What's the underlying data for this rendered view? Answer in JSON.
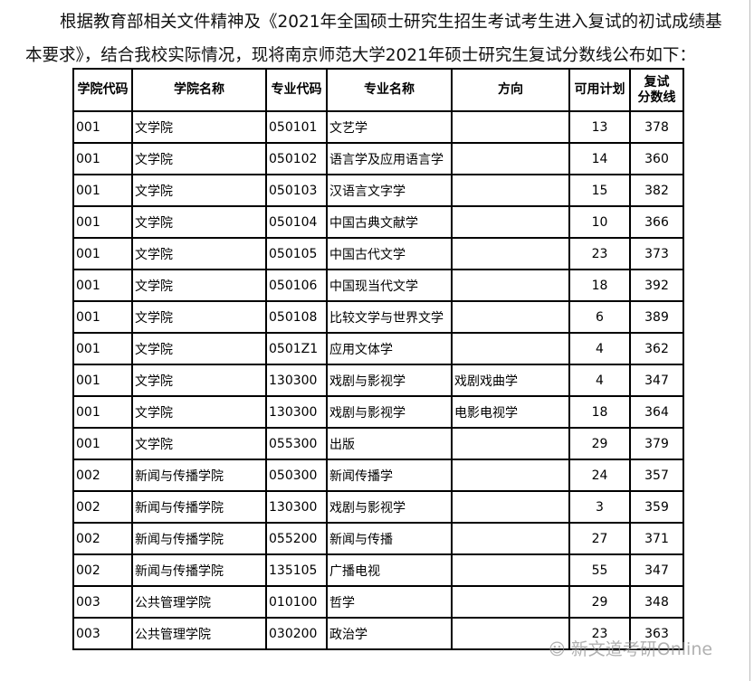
{
  "intro": {
    "line1": "根据教育部相关文件精神及《2021年全国硕士研究生招生考试考生进入复试的初试成绩基",
    "line2": "本要求》，结合我校实际情况，现将南京师范大学2021年硕士研究生复试分数线公布如下："
  },
  "table": {
    "headers": [
      "学院代码",
      "学院名称",
      "专业代码",
      "专业名称",
      "方向",
      "可用计划",
      "复试分数线"
    ],
    "rows": [
      [
        "001",
        "文学院",
        "050101",
        "文艺学",
        "",
        "13",
        "378"
      ],
      [
        "001",
        "文学院",
        "050102",
        "语言学及应用语言学",
        "",
        "14",
        "360"
      ],
      [
        "001",
        "文学院",
        "050103",
        "汉语言文字学",
        "",
        "15",
        "382"
      ],
      [
        "001",
        "文学院",
        "050104",
        "中国古典文献学",
        "",
        "10",
        "366"
      ],
      [
        "001",
        "文学院",
        "050105",
        "中国古代文学",
        "",
        "23",
        "373"
      ],
      [
        "001",
        "文学院",
        "050106",
        "中国现当代文学",
        "",
        "18",
        "392"
      ],
      [
        "001",
        "文学院",
        "050108",
        "比较文学与世界文学",
        "",
        "6",
        "389"
      ],
      [
        "001",
        "文学院",
        "0501Z1",
        "应用文体学",
        "",
        "4",
        "362"
      ],
      [
        "001",
        "文学院",
        "130300",
        "戏剧与影视学",
        "戏剧戏曲学",
        "4",
        "347"
      ],
      [
        "001",
        "文学院",
        "130300",
        "戏剧与影视学",
        "电影电视学",
        "18",
        "364"
      ],
      [
        "001",
        "文学院",
        "055300",
        "出版",
        "",
        "29",
        "379"
      ],
      [
        "002",
        "新闻与传播学院",
        "050300",
        "新闻传播学",
        "",
        "24",
        "357"
      ],
      [
        "002",
        "新闻与传播学院",
        "130300",
        "戏剧与影视学",
        "",
        "3",
        "359"
      ],
      [
        "002",
        "新闻与传播学院",
        "055200",
        "新闻与传播",
        "",
        "27",
        "371"
      ],
      [
        "002",
        "新闻与传播学院",
        "135105",
        "广播电视",
        "",
        "55",
        "347"
      ],
      [
        "003",
        "公共管理学院",
        "010100",
        "哲学",
        "",
        "29",
        "348"
      ],
      [
        "003",
        "公共管理学院",
        "030200",
        "政治学",
        "",
        "23",
        "363"
      ]
    ]
  },
  "watermark": {
    "icon": "wechat-icon",
    "text": "新文道考研Online"
  }
}
